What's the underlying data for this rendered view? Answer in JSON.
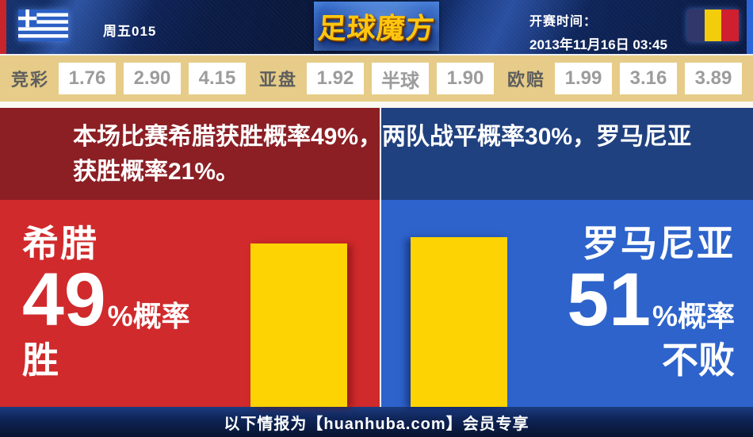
{
  "topbar": {
    "match_code": "周五015",
    "logo_text": "足球魔方",
    "kickoff_label": "开赛时间：",
    "kickoff_datetime": "2013年11月16日 03:45",
    "home_flag": "greece-flag",
    "away_flag": "romania-flag"
  },
  "odds_bar": {
    "groups": [
      {
        "label": "竞彩",
        "values": [
          "1.76",
          "2.90",
          "4.15"
        ]
      },
      {
        "label": "亚盘",
        "values": [
          "1.92",
          "半球",
          "1.90"
        ]
      },
      {
        "label": "欧赔",
        "values": [
          "1.99",
          "3.16",
          "3.89"
        ]
      }
    ]
  },
  "summary_text": "本场比赛希腊获胜概率49%，两队战平概率30%，罗马尼亚获胜概率21%。",
  "teams": {
    "home": {
      "name": "希腊",
      "probability_percent": 49,
      "suffix": "%概率",
      "outcome": "胜"
    },
    "away": {
      "name": "罗马尼亚",
      "probability_percent": 51,
      "suffix": "%概率",
      "outcome": "不败"
    }
  },
  "footer_text": "以下情报为【huanhuba.com】会员专享",
  "colors": {
    "home_red": "#d02a2c",
    "away_blue": "#2d63cb",
    "dark_red": "#8b1f24",
    "dark_blue": "#20417f",
    "bar_yellow": "#fdd303",
    "odds_khaki": "#e6cc88",
    "logo_gold": "#ffc60f"
  },
  "chart_data": {
    "type": "bar",
    "categories": [
      "希腊 胜",
      "罗马尼亚 不败"
    ],
    "values": [
      49,
      51
    ],
    "unit": "%",
    "match_probabilities": {
      "home_win_percent": 49,
      "draw_percent": 30,
      "away_win_percent": 21
    }
  }
}
